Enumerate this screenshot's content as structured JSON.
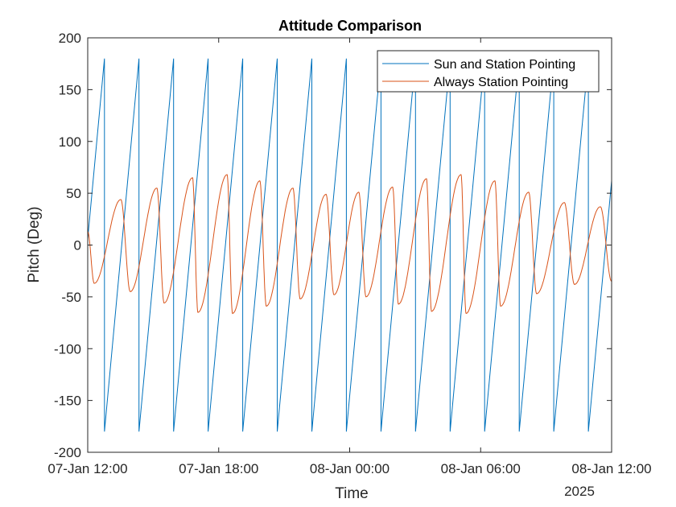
{
  "chart_data": {
    "type": "line",
    "title": "Attitude Comparison",
    "xlabel": "Time",
    "ylabel": "Pitch (Deg)",
    "x_secondary_label": "2025",
    "xlim": [
      "2025-01-07 12:00",
      "2025-01-08 12:00"
    ],
    "ylim": [
      -200,
      200
    ],
    "xticks": [
      {
        "t": "2025-01-07 12:00",
        "label": "07-Jan 12:00"
      },
      {
        "t": "2025-01-07 18:00",
        "label": "07-Jan 18:00"
      },
      {
        "t": "2025-01-08 00:00",
        "label": "08-Jan 00:00"
      },
      {
        "t": "2025-01-08 06:00",
        "label": "08-Jan 06:00"
      },
      {
        "t": "2025-01-08 12:00",
        "label": "08-Jan 12:00"
      }
    ],
    "yticks": [
      -200,
      -150,
      -100,
      -50,
      0,
      50,
      100,
      150,
      200
    ],
    "grid": false,
    "legend_position": "top-right",
    "series": [
      {
        "name": "Sun and Station Pointing",
        "color": "#0072BD",
        "interpolation": "linear",
        "points": [
          [
            "2025-01-07 12:00",
            6
          ],
          [
            "2025-01-07 12:46",
            180
          ],
          [
            "2025-01-07 12:46",
            -180
          ],
          [
            "2025-01-07 14:21",
            180
          ],
          [
            "2025-01-07 14:21",
            -180
          ],
          [
            "2025-01-07 15:56",
            180
          ],
          [
            "2025-01-07 15:56",
            -180
          ],
          [
            "2025-01-07 17:31",
            180
          ],
          [
            "2025-01-07 17:31",
            -180
          ],
          [
            "2025-01-07 19:06",
            180
          ],
          [
            "2025-01-07 19:06",
            -180
          ],
          [
            "2025-01-07 20:41",
            180
          ],
          [
            "2025-01-07 20:41",
            -180
          ],
          [
            "2025-01-07 22:16",
            180
          ],
          [
            "2025-01-07 22:16",
            -180
          ],
          [
            "2025-01-07 23:51",
            180
          ],
          [
            "2025-01-07 23:51",
            -180
          ],
          [
            "2025-01-08 01:26",
            180
          ],
          [
            "2025-01-08 01:26",
            -180
          ],
          [
            "2025-01-08 03:01",
            180
          ],
          [
            "2025-01-08 03:01",
            -180
          ],
          [
            "2025-01-08 04:36",
            180
          ],
          [
            "2025-01-08 04:36",
            -180
          ],
          [
            "2025-01-08 06:11",
            180
          ],
          [
            "2025-01-08 06:11",
            -180
          ],
          [
            "2025-01-08 07:46",
            180
          ],
          [
            "2025-01-08 07:46",
            -180
          ],
          [
            "2025-01-08 09:21",
            180
          ],
          [
            "2025-01-08 09:21",
            -180
          ],
          [
            "2025-01-08 10:56",
            180
          ],
          [
            "2025-01-08 10:56",
            -180
          ],
          [
            "2025-01-08 12:00",
            62
          ]
        ]
      },
      {
        "name": "Always Station Pointing",
        "color": "#D95319",
        "interpolation": "smooth",
        "points": [
          [
            "2025-01-07 12:00",
            13
          ],
          [
            "2025-01-07 12:18",
            -37
          ],
          [
            "2025-01-07 13:31",
            44
          ],
          [
            "2025-01-07 13:57",
            -45
          ],
          [
            "2025-01-07 15:10",
            55
          ],
          [
            "2025-01-07 15:30",
            -56
          ],
          [
            "2025-01-07 16:48",
            65
          ],
          [
            "2025-01-07 17:03",
            -65
          ],
          [
            "2025-01-07 18:23",
            68
          ],
          [
            "2025-01-07 18:38",
            -66
          ],
          [
            "2025-01-07 19:53",
            62
          ],
          [
            "2025-01-07 20:11",
            -59
          ],
          [
            "2025-01-07 21:24",
            55
          ],
          [
            "2025-01-07 21:44",
            -52
          ],
          [
            "2025-01-07 22:55",
            49
          ],
          [
            "2025-01-07 23:17",
            -48
          ],
          [
            "2025-01-08 00:25",
            51
          ],
          [
            "2025-01-08 00:45",
            -50
          ],
          [
            "2025-01-08 01:58",
            56
          ],
          [
            "2025-01-08 02:14",
            -57
          ],
          [
            "2025-01-08 03:31",
            64
          ],
          [
            "2025-01-08 03:45",
            -64
          ],
          [
            "2025-01-08 05:06",
            68
          ],
          [
            "2025-01-08 05:20",
            -66
          ],
          [
            "2025-01-08 06:39",
            62
          ],
          [
            "2025-01-08 06:55",
            -59
          ],
          [
            "2025-01-08 08:12",
            51
          ],
          [
            "2025-01-08 08:34",
            -47
          ],
          [
            "2025-01-08 09:50",
            41
          ],
          [
            "2025-01-08 10:18",
            -38
          ],
          [
            "2025-01-08 11:29",
            37
          ],
          [
            "2025-01-08 12:00",
            -35
          ]
        ]
      }
    ]
  }
}
